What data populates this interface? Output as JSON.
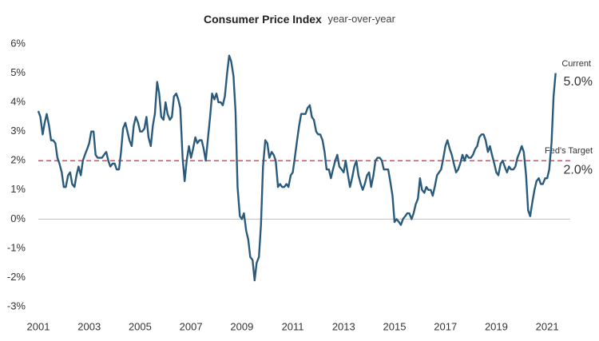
{
  "chart_data": {
    "type": "line",
    "title": "Consumer Price Index",
    "subtitle": "year-over-year",
    "x": [
      2001,
      2001.08,
      2001.17,
      2001.25,
      2001.33,
      2001.42,
      2001.5,
      2001.58,
      2001.67,
      2001.75,
      2001.83,
      2001.92,
      2002,
      2002.08,
      2002.17,
      2002.25,
      2002.33,
      2002.42,
      2002.5,
      2002.58,
      2002.67,
      2002.75,
      2002.83,
      2002.92,
      2003,
      2003.08,
      2003.17,
      2003.25,
      2003.33,
      2003.42,
      2003.5,
      2003.58,
      2003.67,
      2003.75,
      2003.83,
      2003.92,
      2004,
      2004.08,
      2004.17,
      2004.25,
      2004.33,
      2004.42,
      2004.5,
      2004.58,
      2004.67,
      2004.75,
      2004.83,
      2004.92,
      2005,
      2005.08,
      2005.17,
      2005.25,
      2005.33,
      2005.42,
      2005.5,
      2005.58,
      2005.67,
      2005.75,
      2005.83,
      2005.92,
      2006,
      2006.08,
      2006.17,
      2006.25,
      2006.33,
      2006.42,
      2006.5,
      2006.58,
      2006.67,
      2006.75,
      2006.83,
      2006.92,
      2007,
      2007.08,
      2007.17,
      2007.25,
      2007.33,
      2007.42,
      2007.5,
      2007.58,
      2007.67,
      2007.75,
      2007.83,
      2007.92,
      2008,
      2008.08,
      2008.17,
      2008.25,
      2008.33,
      2008.42,
      2008.5,
      2008.58,
      2008.67,
      2008.75,
      2008.83,
      2008.92,
      2009,
      2009.08,
      2009.17,
      2009.25,
      2009.33,
      2009.42,
      2009.5,
      2009.58,
      2009.67,
      2009.75,
      2009.83,
      2009.92,
      2010,
      2010.08,
      2010.17,
      2010.25,
      2010.33,
      2010.42,
      2010.5,
      2010.58,
      2010.67,
      2010.75,
      2010.83,
      2010.92,
      2011,
      2011.08,
      2011.17,
      2011.25,
      2011.33,
      2011.42,
      2011.5,
      2011.58,
      2011.67,
      2011.75,
      2011.83,
      2011.92,
      2012,
      2012.08,
      2012.17,
      2012.25,
      2012.33,
      2012.42,
      2012.5,
      2012.58,
      2012.67,
      2012.75,
      2012.83,
      2012.92,
      2013,
      2013.08,
      2013.17,
      2013.25,
      2013.33,
      2013.42,
      2013.5,
      2013.58,
      2013.67,
      2013.75,
      2013.83,
      2013.92,
      2014,
      2014.08,
      2014.17,
      2014.25,
      2014.33,
      2014.42,
      2014.5,
      2014.58,
      2014.67,
      2014.75,
      2014.83,
      2014.92,
      2015,
      2015.08,
      2015.17,
      2015.25,
      2015.33,
      2015.42,
      2015.5,
      2015.58,
      2015.67,
      2015.75,
      2015.83,
      2015.92,
      2016,
      2016.08,
      2016.17,
      2016.25,
      2016.33,
      2016.42,
      2016.5,
      2016.58,
      2016.67,
      2016.75,
      2016.83,
      2016.92,
      2017,
      2017.08,
      2017.17,
      2017.25,
      2017.33,
      2017.42,
      2017.5,
      2017.58,
      2017.67,
      2017.75,
      2017.83,
      2017.92,
      2018,
      2018.08,
      2018.17,
      2018.25,
      2018.33,
      2018.42,
      2018.5,
      2018.58,
      2018.67,
      2018.75,
      2018.83,
      2018.92,
      2019,
      2019.08,
      2019.17,
      2019.25,
      2019.33,
      2019.42,
      2019.5,
      2019.58,
      2019.67,
      2019.75,
      2019.83,
      2019.92,
      2020,
      2020.08,
      2020.17,
      2020.25,
      2020.33,
      2020.42,
      2020.5,
      2020.58,
      2020.67,
      2020.75,
      2020.83,
      2020.92,
      2021,
      2021.08,
      2021.17,
      2021.25,
      2021.33
    ],
    "series": [
      {
        "name": "CPI year-over-year",
        "color": "#2b5b7c",
        "values": [
          3.7,
          3.5,
          2.9,
          3.3,
          3.6,
          3.2,
          2.7,
          2.7,
          2.6,
          2.1,
          1.9,
          1.6,
          1.1,
          1.1,
          1.5,
          1.6,
          1.2,
          1.1,
          1.5,
          1.8,
          1.5,
          2.0,
          2.2,
          2.4,
          2.6,
          3.0,
          3.0,
          2.2,
          2.1,
          2.1,
          2.1,
          2.2,
          2.3,
          2.0,
          1.8,
          1.9,
          1.9,
          1.7,
          1.7,
          2.3,
          3.1,
          3.3,
          3.0,
          2.7,
          2.5,
          3.2,
          3.5,
          3.3,
          3.0,
          3.0,
          3.1,
          3.5,
          2.8,
          2.5,
          3.2,
          3.6,
          4.7,
          4.3,
          3.5,
          3.4,
          4.0,
          3.6,
          3.4,
          3.5,
          4.2,
          4.3,
          4.1,
          3.8,
          2.1,
          1.3,
          2.0,
          2.5,
          2.1,
          2.4,
          2.8,
          2.6,
          2.7,
          2.7,
          2.4,
          2.0,
          2.8,
          3.5,
          4.3,
          4.1,
          4.3,
          4.0,
          4.0,
          3.9,
          4.2,
          5.0,
          5.6,
          5.4,
          4.9,
          3.7,
          1.1,
          0.1,
          0.0,
          0.2,
          -0.4,
          -0.7,
          -1.3,
          -1.4,
          -2.1,
          -1.5,
          -1.3,
          -0.2,
          1.8,
          2.7,
          2.6,
          2.1,
          2.3,
          2.2,
          2.0,
          1.1,
          1.2,
          1.1,
          1.1,
          1.2,
          1.1,
          1.5,
          1.6,
          2.1,
          2.7,
          3.2,
          3.6,
          3.6,
          3.6,
          3.8,
          3.9,
          3.5,
          3.4,
          3.0,
          2.9,
          2.9,
          2.7,
          2.3,
          1.7,
          1.7,
          1.4,
          1.7,
          2.0,
          2.2,
          1.8,
          1.7,
          1.6,
          2.0,
          1.5,
          1.1,
          1.4,
          1.8,
          2.0,
          1.5,
          1.2,
          1.0,
          1.2,
          1.5,
          1.6,
          1.1,
          1.5,
          2.0,
          2.1,
          2.1,
          2.0,
          1.7,
          1.7,
          1.7,
          1.3,
          0.8,
          -0.1,
          0.0,
          -0.1,
          -0.2,
          0.0,
          0.1,
          0.2,
          0.2,
          0.0,
          0.2,
          0.5,
          0.7,
          1.4,
          1.0,
          0.9,
          1.1,
          1.0,
          1.0,
          0.8,
          1.1,
          1.5,
          1.6,
          1.7,
          2.1,
          2.5,
          2.7,
          2.4,
          2.2,
          1.9,
          1.6,
          1.7,
          1.9,
          2.2,
          2.0,
          2.2,
          2.1,
          2.1,
          2.2,
          2.4,
          2.5,
          2.8,
          2.9,
          2.9,
          2.7,
          2.3,
          2.5,
          2.2,
          1.9,
          1.6,
          1.5,
          1.9,
          2.0,
          1.8,
          1.6,
          1.8,
          1.7,
          1.7,
          1.8,
          2.1,
          2.3,
          2.5,
          2.3,
          1.5,
          0.3,
          0.1,
          0.6,
          1.0,
          1.3,
          1.4,
          1.2,
          1.2,
          1.4,
          1.4,
          1.7,
          2.6,
          4.2,
          5.0
        ]
      }
    ],
    "xlim": [
      2001,
      2022
    ],
    "xticks": [
      2001,
      2003,
      2005,
      2007,
      2009,
      2011,
      2013,
      2015,
      2017,
      2019,
      2021
    ],
    "ylim": [
      -3,
      6
    ],
    "yticks": [
      {
        "value": 6,
        "label": "6%"
      },
      {
        "value": 5,
        "label": "5%"
      },
      {
        "value": 4,
        "label": "4%"
      },
      {
        "value": 3,
        "label": "3%"
      },
      {
        "value": 2,
        "label": "2%"
      },
      {
        "value": 1,
        "label": "1%"
      },
      {
        "value": 0,
        "label": "0%"
      },
      {
        "value": -1,
        "label": "-1%"
      },
      {
        "value": -2,
        "label": "-2%"
      },
      {
        "value": -3,
        "label": "-3%"
      }
    ],
    "reference_line": {
      "value": 2,
      "label": "Fed's Target",
      "value_label": "2.0%",
      "color": "#e8455a"
    },
    "last_label": {
      "label": "Current",
      "value_label": "5.0%",
      "color": "#4f7ea3"
    }
  }
}
